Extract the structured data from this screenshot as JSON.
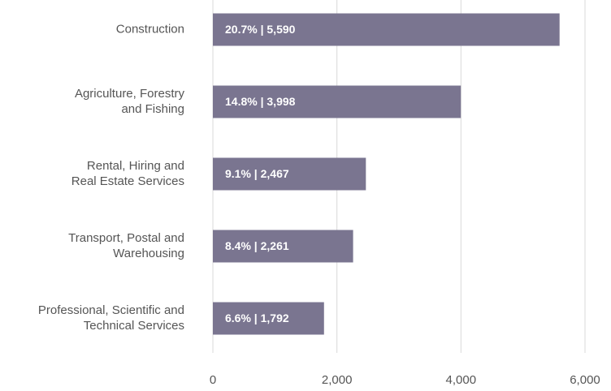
{
  "chart_data": {
    "type": "bar",
    "orientation": "horizontal",
    "categories": [
      [
        "Construction"
      ],
      [
        "Agriculture, Forestry",
        "and Fishing"
      ],
      [
        "Rental, Hiring and",
        "Real Estate Services"
      ],
      [
        "Transport, Postal and",
        "Warehousing"
      ],
      [
        "Professional, Scientific and",
        "Technical Services"
      ]
    ],
    "values": [
      5590,
      3998,
      2467,
      2261,
      1792
    ],
    "value_labels": [
      "20.7% | 5,590",
      "14.8% | 3,998",
      "9.1% | 2,467",
      "8.4% | 2,261",
      "6.6% | 1,792"
    ],
    "color": "#7a7590",
    "xlim": [
      0,
      6000
    ],
    "xticks": [
      0,
      {
        "value": 2000,
        "label": "2,000"
      },
      {
        "value": 4000,
        "label": "4,000"
      },
      {
        "value": 6000,
        "label": "6,000"
      }
    ],
    "grid": true
  }
}
